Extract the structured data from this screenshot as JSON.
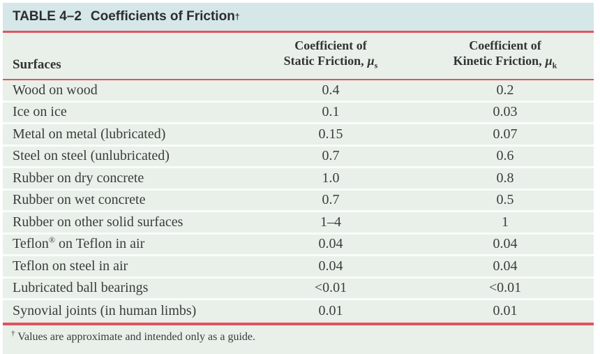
{
  "table": {
    "title": {
      "label": "TABLE 4–2",
      "name": "Coefficients of Friction",
      "dagger": "†"
    },
    "columns": {
      "surfaces": "Surfaces",
      "static": {
        "line1": "Coefficient of",
        "line2": "Static Friction,",
        "symbol": "μ",
        "sub": "s"
      },
      "kinetic": {
        "line1": "Coefficient of",
        "line2": "Kinetic Friction,",
        "symbol": "μ",
        "sub": "k"
      }
    },
    "rows": [
      {
        "surface": "Wood on wood",
        "static": "0.4",
        "kinetic": "0.2"
      },
      {
        "surface": "Ice on ice",
        "static": "0.1",
        "kinetic": "0.03"
      },
      {
        "surface": "Metal on metal (lubricated)",
        "static": "0.15",
        "kinetic": "0.07"
      },
      {
        "surface": "Steel on steel (unlubricated)",
        "static": "0.7",
        "kinetic": "0.6"
      },
      {
        "surface": "Rubber on dry concrete",
        "static": "1.0",
        "kinetic": "0.8"
      },
      {
        "surface": "Rubber on wet concrete",
        "static": "0.7",
        "kinetic": "0.5"
      },
      {
        "surface": "Rubber on other solid surfaces",
        "static": "1–4",
        "kinetic": "1"
      },
      {
        "surface_prefix": "Teflon",
        "surface_sup": "®",
        "surface_suffix": " on Teflon in air",
        "static": "0.04",
        "kinetic": "0.04"
      },
      {
        "surface": "Teflon on steel in air",
        "static": "0.04",
        "kinetic": "0.04"
      },
      {
        "surface": "Lubricated ball bearings",
        "static": "<0.01",
        "kinetic": "<0.01"
      },
      {
        "surface": "Synovial joints (in human limbs)",
        "static": "0.01",
        "kinetic": "0.01"
      }
    ],
    "footnote": {
      "dagger": "†",
      "text": "Values are approximate and intended only as a guide."
    },
    "colors": {
      "title_bar_bg": "#d5e7e9",
      "body_bg": "#e9f0e9",
      "rule_red": "#df5460",
      "row_divider": "#fafcf9",
      "text": "#3b3b3b"
    }
  }
}
